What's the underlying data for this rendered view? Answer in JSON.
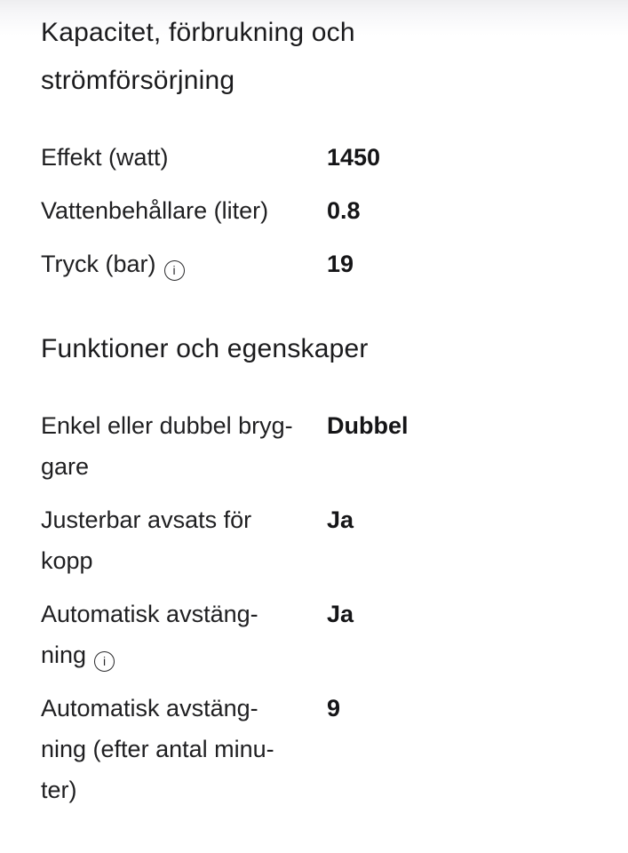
{
  "page": {
    "background_color": "#ffffff",
    "top_shade_color": "#eeeef0",
    "text_color": "#1c1c1e"
  },
  "icons": {
    "info": "i"
  },
  "sections": [
    {
      "heading": "Kapacitet, förbrukning och strömförsörjning",
      "rows": [
        {
          "label": "Effekt (watt)",
          "value": "1450",
          "has_info": false
        },
        {
          "label": "Vattenbehållare (liter)",
          "value": "0.8",
          "has_info": false
        },
        {
          "label": "Tryck (bar)",
          "value": "19",
          "has_info": true
        }
      ]
    },
    {
      "heading": "Funktioner och egenskaper",
      "rows": [
        {
          "label": "Enkel eller dubbel bryg­gare",
          "value": "Dubbel",
          "has_info": false
        },
        {
          "label": "Justerbar avsats för kopp",
          "value": "Ja",
          "has_info": false
        },
        {
          "label": "Automatisk avstäng­ning",
          "value": "Ja",
          "has_info": true
        },
        {
          "label": "Automatisk avstäng­ning (efter antal minu­ter)",
          "value": "9",
          "has_info": false
        }
      ]
    }
  ]
}
